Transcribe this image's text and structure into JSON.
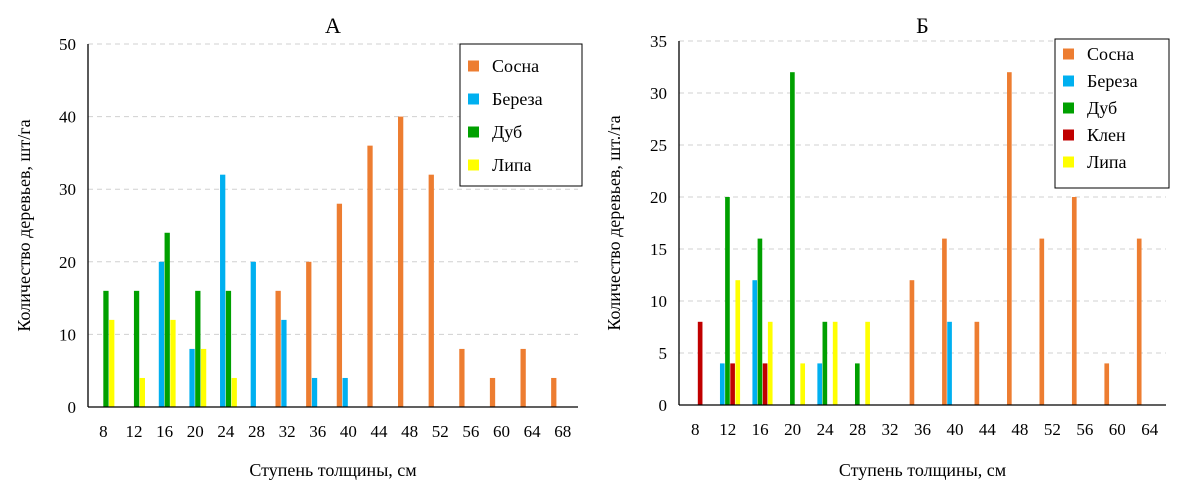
{
  "colors": {
    "Сосна": "#ED7D31",
    "Береза": "#00B0F0",
    "Дуб": "#00A000",
    "Клен": "#C00000",
    "Липа": "#FFFF00"
  },
  "chart_data": [
    {
      "type": "bar",
      "title": "А",
      "xlabel": "Ступень толщины, см",
      "ylabel": "Количество деревьев, шт/га",
      "ylim": [
        0,
        50
      ],
      "yticks": [
        0,
        10,
        20,
        30,
        40,
        50
      ],
      "grid": true,
      "legend_position": "top-right",
      "categories": [
        "8",
        "12",
        "16",
        "20",
        "24",
        "28",
        "32",
        "36",
        "40",
        "44",
        "48",
        "52",
        "56",
        "60",
        "64",
        "68"
      ],
      "series": [
        {
          "name": "Сосна",
          "values": [
            0,
            0,
            0,
            0,
            0,
            0,
            16,
            20,
            28,
            36,
            40,
            32,
            8,
            4,
            8,
            4
          ]
        },
        {
          "name": "Береза",
          "values": [
            0,
            0,
            20,
            8,
            32,
            20,
            12,
            4,
            4,
            0,
            0,
            0,
            0,
            0,
            0,
            0
          ]
        },
        {
          "name": "Дуб",
          "values": [
            16,
            16,
            24,
            16,
            16,
            0,
            0,
            0,
            0,
            0,
            0,
            0,
            0,
            0,
            0,
            0
          ]
        },
        {
          "name": "Липа",
          "values": [
            12,
            4,
            12,
            8,
            4,
            0,
            0,
            0,
            0,
            0,
            0,
            0,
            0,
            0,
            0,
            0
          ]
        }
      ]
    },
    {
      "type": "bar",
      "title": "Б",
      "xlabel": "Ступень толщины, см",
      "ylabel": "Количество деревьев, шт./га",
      "ylim": [
        0,
        35
      ],
      "yticks": [
        0,
        5,
        10,
        15,
        20,
        25,
        30,
        35
      ],
      "grid": true,
      "legend_position": "top-right",
      "categories": [
        "8",
        "12",
        "16",
        "20",
        "24",
        "28",
        "32",
        "36",
        "40",
        "44",
        "48",
        "52",
        "56",
        "60",
        "64"
      ],
      "series": [
        {
          "name": "Сосна",
          "values": [
            0,
            0,
            0,
            0,
            0,
            0,
            0,
            12,
            16,
            8,
            32,
            16,
            20,
            4,
            16
          ]
        },
        {
          "name": "Береза",
          "values": [
            0,
            4,
            12,
            0,
            4,
            0,
            0,
            0,
            8,
            0,
            0,
            0,
            0,
            0,
            0
          ]
        },
        {
          "name": "Дуб",
          "values": [
            0,
            20,
            16,
            32,
            8,
            4,
            0,
            0,
            0,
            0,
            0,
            0,
            0,
            0,
            0
          ]
        },
        {
          "name": "Клен",
          "values": [
            8,
            4,
            4,
            0,
            0,
            0,
            0,
            0,
            0,
            0,
            0,
            0,
            0,
            0,
            0
          ]
        },
        {
          "name": "Липа",
          "values": [
            0,
            12,
            8,
            4,
            8,
            8,
            0,
            0,
            0,
            0,
            0,
            0,
            0,
            0,
            0
          ]
        }
      ]
    }
  ]
}
